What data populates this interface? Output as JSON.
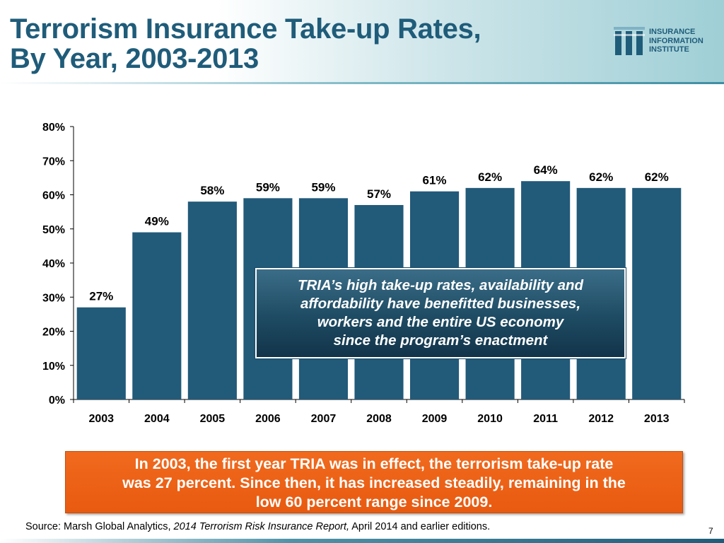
{
  "title": {
    "line1": "Terrorism Insurance Take-up Rates,",
    "line2": "By Year, 2003-2013"
  },
  "logo": {
    "line1": "INSURANCE",
    "line2": "INFORMATION",
    "line3": "INSTITUTE",
    "icon": "iii-logo-icon"
  },
  "chart_data": {
    "type": "bar",
    "title": "",
    "xlabel": "",
    "ylabel": "",
    "categories": [
      "2003",
      "2004",
      "2005",
      "2006",
      "2007",
      "2008",
      "2009",
      "2010",
      "2011",
      "2012",
      "2013"
    ],
    "values": [
      27,
      49,
      58,
      59,
      59,
      57,
      61,
      62,
      64,
      62,
      62
    ],
    "value_labels": [
      "27%",
      "49%",
      "58%",
      "59%",
      "59%",
      "57%",
      "61%",
      "62%",
      "64%",
      "62%",
      "62%"
    ],
    "ylim": [
      0,
      80
    ],
    "yticks": [
      0,
      10,
      20,
      30,
      40,
      50,
      60,
      70,
      80
    ],
    "ytick_labels": [
      "0%",
      "10%",
      "20%",
      "30%",
      "40%",
      "50%",
      "60%",
      "70%",
      "80%"
    ],
    "grid": false,
    "bar_color": "#225a79"
  },
  "callout": {
    "line1": "TRIA’s high take-up rates, availability and",
    "line2": "affordability have benefitted businesses,",
    "line3": "workers and the entire US economy",
    "line4": "since the program’s enactment"
  },
  "note": {
    "line1": "In 2003, the first year TRIA was in effect, the terrorism take-up rate",
    "line2": "was 27 percent. Since then, it has increased steadily, remaining in the",
    "line3": "low 60 percent range since 2009."
  },
  "source": {
    "prefix": "Source: Marsh Global Analytics, ",
    "italic": "2014 Terrorism Risk Insurance Report,",
    "suffix": " April 2014 and earlier editions."
  },
  "page_number": "7",
  "colors": {
    "title": "#1f5c7a",
    "bar": "#225a79",
    "note_bg": "#ea5e14"
  }
}
